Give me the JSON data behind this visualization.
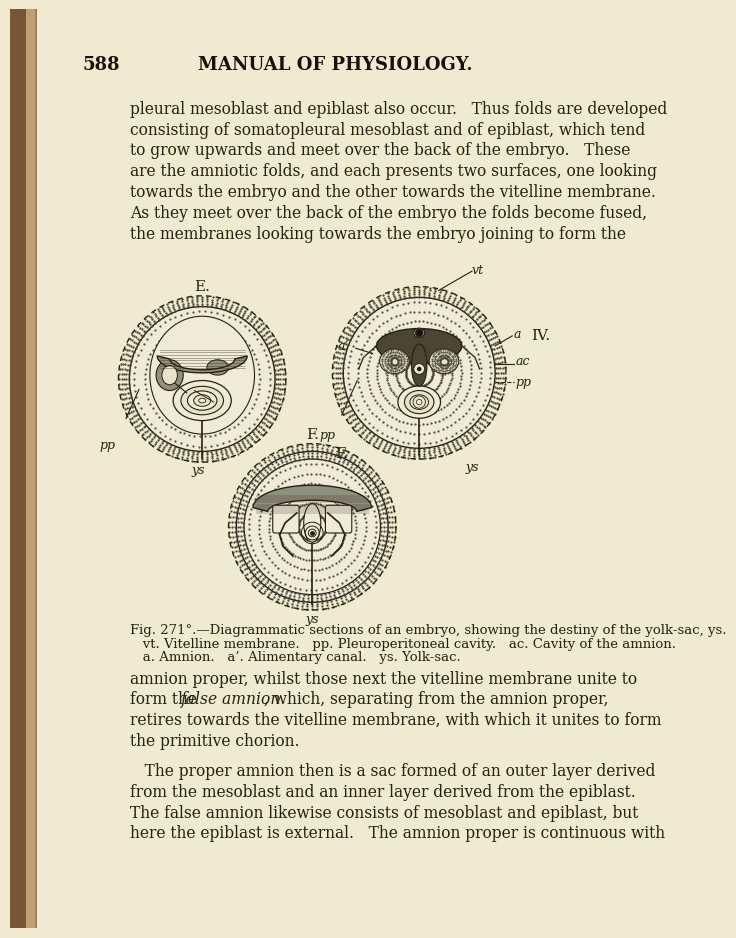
{
  "bg_color": "#f0ebd0",
  "ink_color": "#252010",
  "text_color": "#252010",
  "header_color": "#1a1008",
  "page_number": "588",
  "header": "MANUAL OF PHYSIOLOGY.",
  "para1_lines": [
    "pleural mesoblast and epiblast also occur.   Thus folds are developed",
    "consisting of somatopleural mesoblast and of epiblast, which tend",
    "to grow upwards and meet over the back of the embryo.   These",
    "are the amniotic folds, and each presents two surfaces, one looking",
    "towards the embryo and the other towards the vitelline membrane.",
    "As they meet over the back of the embryo the folds become fused,",
    "the membranes looking towards the embryo joining to form the"
  ],
  "fig_caption_line1": "Fig. 271°.—Diagrammatic sections of an embryo, showing the destiny of the yolk-sac, ys.",
  "fig_caption_line2": "   vt. Vitelline membrane.   pp. Pleuroperitoneal cavity.   ac. Cavity of the amnion.",
  "fig_caption_line3": "   a. Amnion.   a’. Alimentary canal.   ys. Yolk-sac.",
  "para2_lines": [
    "amnion proper, whilst those next the vitelline membrane unite to",
    "form the \\textit{false amnion}, which, separating from the amnion proper,",
    "retires towards the vitelline membrane, with which it unites to form",
    "the primitive chorion."
  ],
  "para3_lines": [
    "   The proper amnion then is a sac formed of an outer layer derived",
    "from the mesoblast and an inner layer derived from the epiblast.",
    "The false amnion likewise consists of mesoblast and epiblast, but",
    "here the epiblast is external.   The amnion proper is continuous with"
  ],
  "dot_color": "#404030",
  "fill_dotted": "#e8e3c8",
  "fill_inner": "#f0ead8",
  "fill_embryo_dark": "#4a4535",
  "fill_embryo_mid": "#7a7060",
  "fill_embryo_light": "#b0aa90",
  "fill_stripe": "#909080",
  "fill_dotted_region": "#c8c4a8"
}
